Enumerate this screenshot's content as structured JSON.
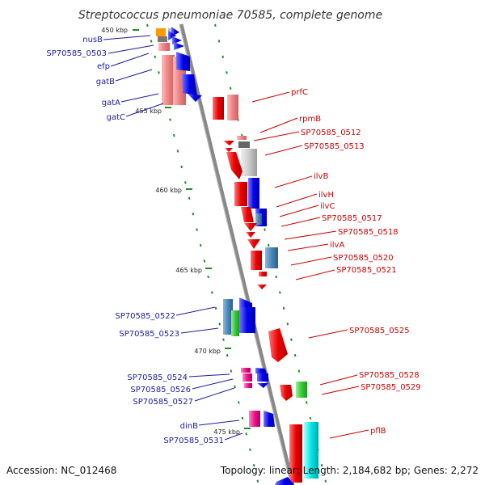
{
  "title": "Streptococcus pneumoniae 70585, complete genome",
  "accession": "Accession: NC_012468",
  "summary": "Topology: linear; Length: 2,184,682 bp; Genes: 2,272",
  "ticks": [
    "450 kbp",
    "455 kbp",
    "460 kbp",
    "465 kbp",
    "470 kbp",
    "475 kbp"
  ],
  "left_labels": [
    "nusB",
    "SP70585_0503",
    "efp",
    "gatB",
    "gatA",
    "gatC",
    "SP70585_0522",
    "SP70585_0523",
    "SP70585_0524",
    "SP70585_0526",
    "SP70585_0527",
    "dinB",
    "SP70585_0531"
  ],
  "right_labels": [
    "prfC",
    "rpmB",
    "SP70585_0512",
    "SP70585_0513",
    "ilvB",
    "ilvH",
    "ilvC",
    "SP70585_0517",
    "SP70585_0518",
    "ilvA",
    "SP70585_0520",
    "SP70585_0521",
    "SP70585_0525",
    "SP70585_0528",
    "SP70585_0529",
    "pflB"
  ],
  "colors": {
    "forward_cds": "#0000ee",
    "reverse_cds": "#ee0000",
    "orange": "#ff9900",
    "gray": "#888888",
    "steel": "#4a86b8",
    "green": "#33cc33",
    "magenta": "#ee1188",
    "cyan": "#00e6e6",
    "pink": "#f08080",
    "dot_green": "#228b22"
  }
}
